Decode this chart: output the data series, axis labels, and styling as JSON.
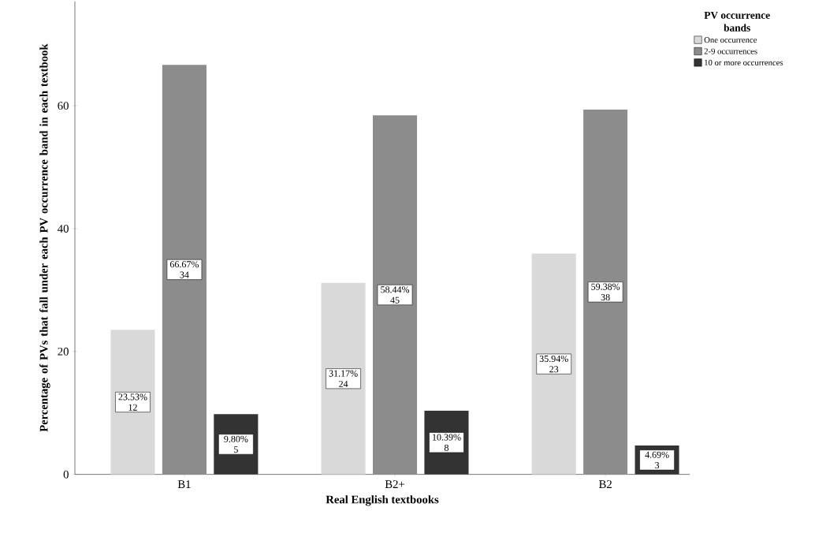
{
  "chart_data": {
    "type": "bar",
    "xlabel": "Real English textbooks",
    "ylabel": "Percentage of PVs that fall under each PV occurrence band in each textbook",
    "legend_title": "PV occurrence bands",
    "legend": "top right",
    "categories": [
      "B1",
      "B2+",
      "B2"
    ],
    "series": [
      {
        "name": "One occurrence",
        "color": "#d9d9d9",
        "values": [
          23.53,
          31.17,
          35.94
        ],
        "value_labels": [
          "23.53% 12",
          "31.17% 24",
          "35.94% 23"
        ]
      },
      {
        "name": "2-9 occurrences",
        "color": "#8c8c8c",
        "values": [
          66.67,
          58.44,
          59.38
        ],
        "value_labels": [
          "66.67% 34",
          "58.44% 45",
          "59.38% 38"
        ]
      },
      {
        "name": "10 or more occurrences",
        "color": "#333333",
        "values": [
          9.8,
          10.39,
          4.69
        ],
        "value_labels": [
          "9.80% 5",
          "10.39% 8",
          "4.69% 3"
        ]
      }
    ],
    "ylim": [
      0,
      77
    ],
    "yticks": [
      0,
      20,
      40,
      60
    ]
  }
}
